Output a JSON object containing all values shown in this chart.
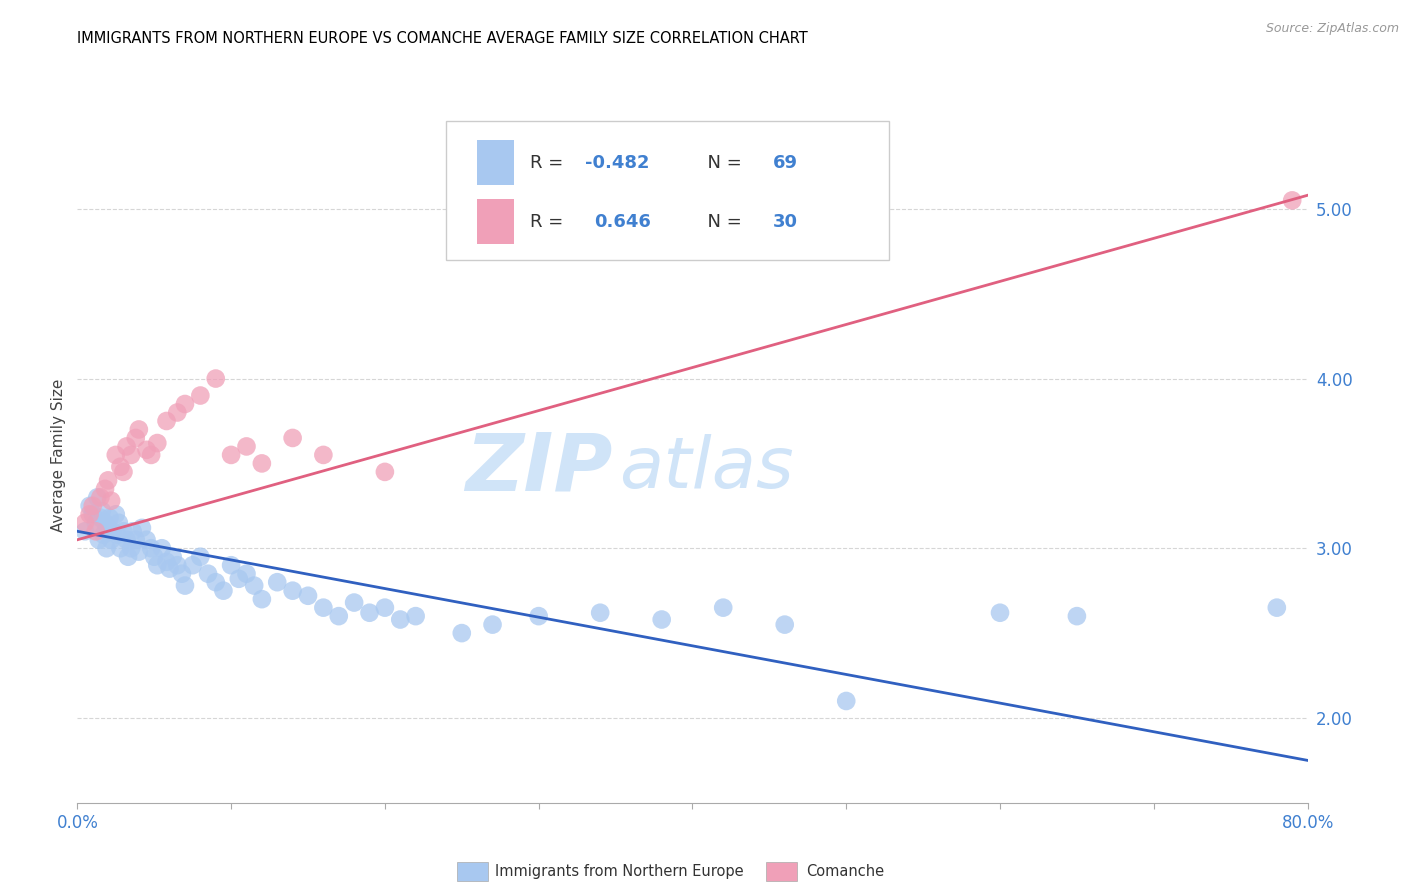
{
  "title": "IMMIGRANTS FROM NORTHERN EUROPE VS COMANCHE AVERAGE FAMILY SIZE CORRELATION CHART",
  "source": "Source: ZipAtlas.com",
  "ylabel": "Average Family Size",
  "x_min": 0.0,
  "x_max": 0.8,
  "y_min": 1.5,
  "y_max": 5.6,
  "yticks": [
    2.0,
    3.0,
    4.0,
    5.0
  ],
  "xticks": [
    0.0,
    0.1,
    0.2,
    0.3,
    0.4,
    0.5,
    0.6,
    0.7,
    0.8
  ],
  "legend_label1": "Immigrants from Northern Europe",
  "legend_label2": "Comanche",
  "R1": -0.482,
  "N1": 69,
  "R2": 0.646,
  "N2": 30,
  "blue_color": "#A8C8F0",
  "pink_color": "#F0A0B8",
  "blue_line_color": "#3060C0",
  "pink_line_color": "#E06080",
  "axis_label_color": "#4080D0",
  "watermark_zip": "ZIP",
  "watermark_atlas": "atlas",
  "watermark_color": "#D0E4F8",
  "blue_scatter_x": [
    0.005,
    0.008,
    0.01,
    0.012,
    0.013,
    0.014,
    0.015,
    0.016,
    0.017,
    0.018,
    0.019,
    0.02,
    0.021,
    0.022,
    0.023,
    0.025,
    0.026,
    0.027,
    0.028,
    0.03,
    0.032,
    0.033,
    0.035,
    0.036,
    0.038,
    0.04,
    0.042,
    0.045,
    0.048,
    0.05,
    0.052,
    0.055,
    0.058,
    0.06,
    0.062,
    0.065,
    0.068,
    0.07,
    0.075,
    0.08,
    0.085,
    0.09,
    0.095,
    0.1,
    0.105,
    0.11,
    0.115,
    0.12,
    0.13,
    0.14,
    0.15,
    0.16,
    0.17,
    0.18,
    0.19,
    0.2,
    0.21,
    0.22,
    0.25,
    0.27,
    0.3,
    0.34,
    0.38,
    0.42,
    0.46,
    0.5,
    0.6,
    0.65,
    0.78
  ],
  "blue_scatter_y": [
    3.1,
    3.25,
    3.2,
    3.15,
    3.3,
    3.05,
    3.18,
    3.22,
    3.08,
    3.15,
    3.0,
    3.12,
    3.18,
    3.05,
    3.1,
    3.2,
    3.08,
    3.15,
    3.0,
    3.1,
    3.05,
    2.95,
    3.0,
    3.1,
    3.05,
    2.98,
    3.12,
    3.05,
    3.0,
    2.95,
    2.9,
    3.0,
    2.92,
    2.88,
    2.95,
    2.9,
    2.85,
    2.78,
    2.9,
    2.95,
    2.85,
    2.8,
    2.75,
    2.9,
    2.82,
    2.85,
    2.78,
    2.7,
    2.8,
    2.75,
    2.72,
    2.65,
    2.6,
    2.68,
    2.62,
    2.65,
    2.58,
    2.6,
    2.5,
    2.55,
    2.6,
    2.62,
    2.58,
    2.65,
    2.55,
    2.1,
    2.62,
    2.6,
    2.65
  ],
  "pink_scatter_x": [
    0.005,
    0.008,
    0.01,
    0.012,
    0.015,
    0.018,
    0.02,
    0.022,
    0.025,
    0.028,
    0.03,
    0.032,
    0.035,
    0.038,
    0.04,
    0.045,
    0.048,
    0.052,
    0.058,
    0.065,
    0.07,
    0.08,
    0.09,
    0.1,
    0.11,
    0.12,
    0.14,
    0.16,
    0.2,
    0.79
  ],
  "pink_scatter_y": [
    3.15,
    3.2,
    3.25,
    3.1,
    3.3,
    3.35,
    3.4,
    3.28,
    3.55,
    3.48,
    3.45,
    3.6,
    3.55,
    3.65,
    3.7,
    3.58,
    3.55,
    3.62,
    3.75,
    3.8,
    3.85,
    3.9,
    4.0,
    3.55,
    3.6,
    3.5,
    3.65,
    3.55,
    3.45,
    5.05
  ],
  "blue_trend_x": [
    0.0,
    0.8
  ],
  "blue_trend_y": [
    3.1,
    1.75
  ],
  "pink_trend_x": [
    0.0,
    0.8
  ],
  "pink_trend_y": [
    3.05,
    5.08
  ]
}
